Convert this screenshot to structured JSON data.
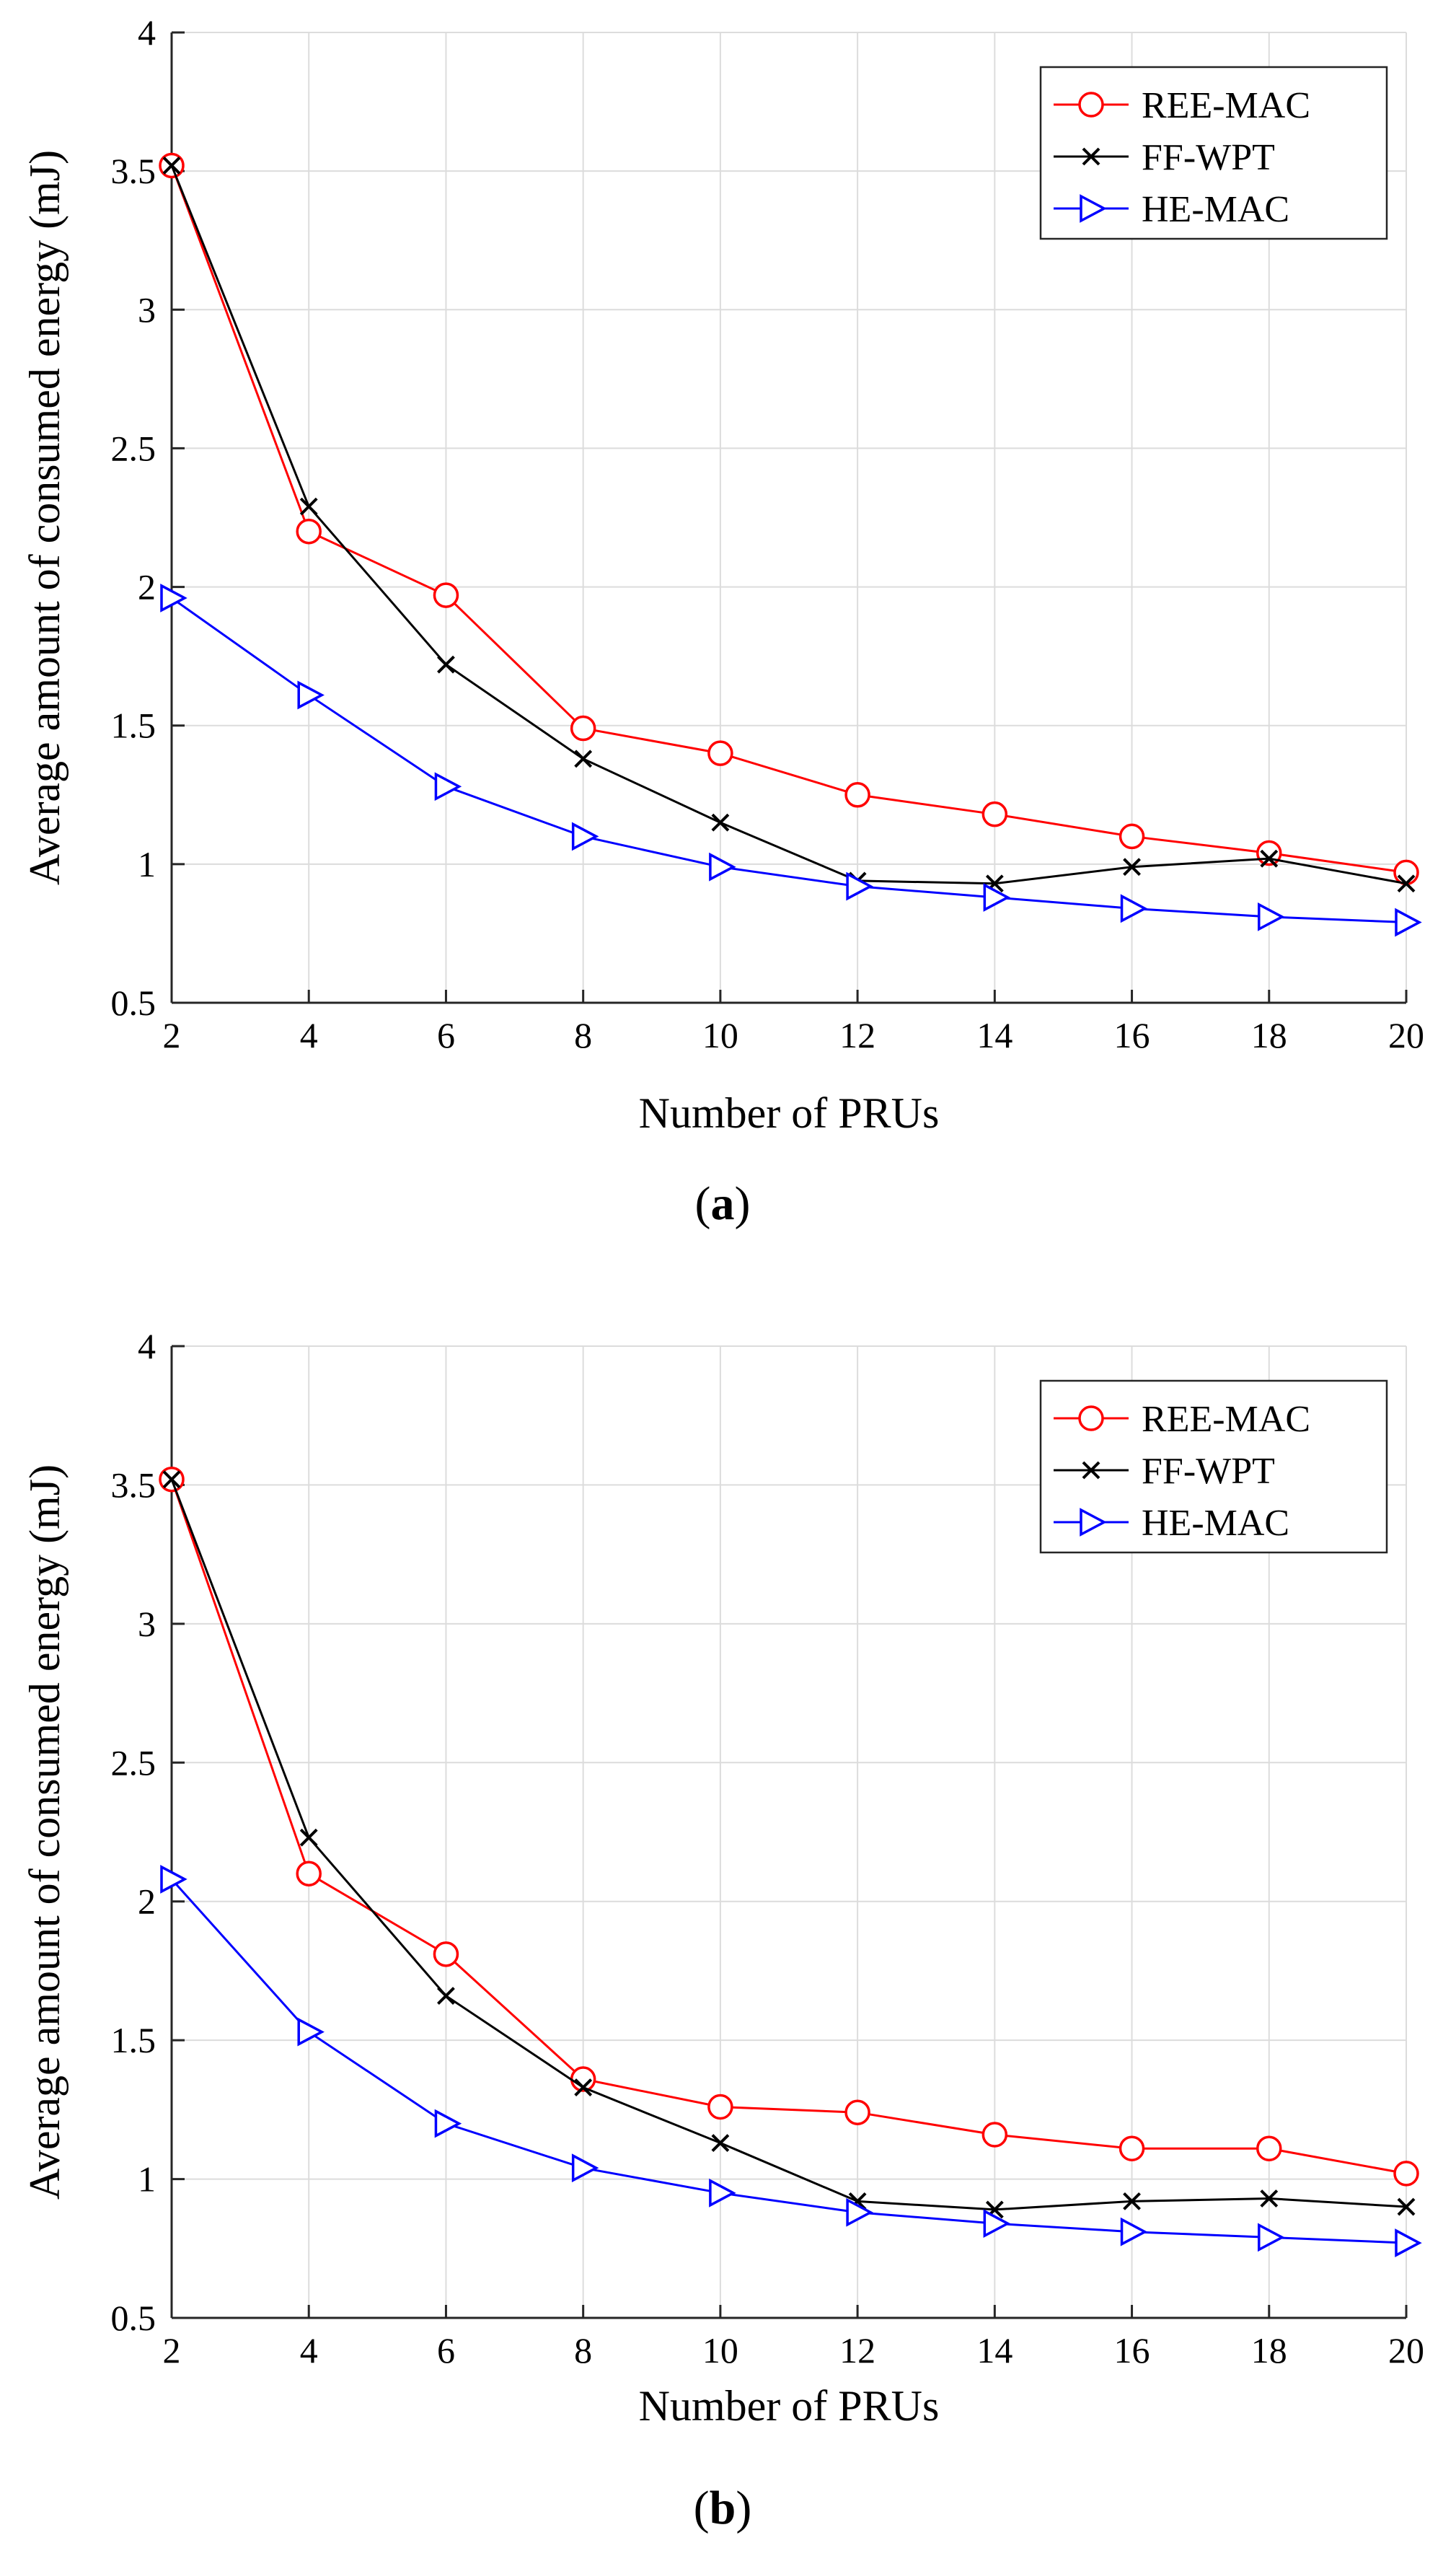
{
  "chart_data": [
    {
      "type": "line",
      "caption": "a",
      "xlabel": "Number of PRUs",
      "ylabel": "Average amount of consumed energy (mJ)",
      "xlim": [
        2,
        20
      ],
      "ylim": [
        0.5,
        4
      ],
      "grid": true,
      "legend_position": "top-right",
      "x": [
        2,
        4,
        6,
        8,
        10,
        12,
        14,
        16,
        18,
        20
      ],
      "x_ticks": [
        "2",
        "4",
        "6",
        "8",
        "10",
        "12",
        "14",
        "16",
        "18",
        "20"
      ],
      "y_ticks": [
        "0.5",
        "1",
        "1.5",
        "2",
        "2.5",
        "3",
        "3.5",
        "4"
      ],
      "series": [
        {
          "name": "REE-MAC",
          "color": "#ff0000",
          "marker": "circle",
          "values": [
            3.52,
            2.2,
            1.97,
            1.49,
            1.4,
            1.25,
            1.18,
            1.1,
            1.04,
            0.97
          ]
        },
        {
          "name": "FF-WPT",
          "color": "#000000",
          "marker": "x",
          "values": [
            3.52,
            2.29,
            1.72,
            1.38,
            1.15,
            0.94,
            0.93,
            0.99,
            1.02,
            0.93
          ]
        },
        {
          "name": "HE-MAC",
          "color": "#0000ff",
          "marker": "triangle-right",
          "values": [
            1.96,
            1.61,
            1.28,
            1.1,
            0.99,
            0.92,
            0.88,
            0.84,
            0.81,
            0.79
          ]
        }
      ]
    },
    {
      "type": "line",
      "caption": "b",
      "xlabel": "Number of PRUs",
      "ylabel": "Average amount of consumed energy (mJ)",
      "xlim": [
        2,
        20
      ],
      "ylim": [
        0.5,
        4
      ],
      "grid": true,
      "legend_position": "top-right",
      "x": [
        2,
        4,
        6,
        8,
        10,
        12,
        14,
        16,
        18,
        20
      ],
      "x_ticks": [
        "2",
        "4",
        "6",
        "8",
        "10",
        "12",
        "14",
        "16",
        "18",
        "20"
      ],
      "y_ticks": [
        "0.5",
        "1",
        "1.5",
        "2",
        "2.5",
        "3",
        "3.5",
        "4"
      ],
      "series": [
        {
          "name": "REE-MAC",
          "color": "#ff0000",
          "marker": "circle",
          "values": [
            3.52,
            2.1,
            1.81,
            1.36,
            1.26,
            1.24,
            1.16,
            1.11,
            1.11,
            1.02
          ]
        },
        {
          "name": "FF-WPT",
          "color": "#000000",
          "marker": "x",
          "values": [
            3.52,
            2.23,
            1.66,
            1.33,
            1.13,
            0.92,
            0.89,
            0.92,
            0.93,
            0.9
          ]
        },
        {
          "name": "HE-MAC",
          "color": "#0000ff",
          "marker": "triangle-right",
          "values": [
            2.08,
            1.53,
            1.2,
            1.04,
            0.95,
            0.88,
            0.84,
            0.81,
            0.79,
            0.77
          ]
        }
      ]
    }
  ]
}
